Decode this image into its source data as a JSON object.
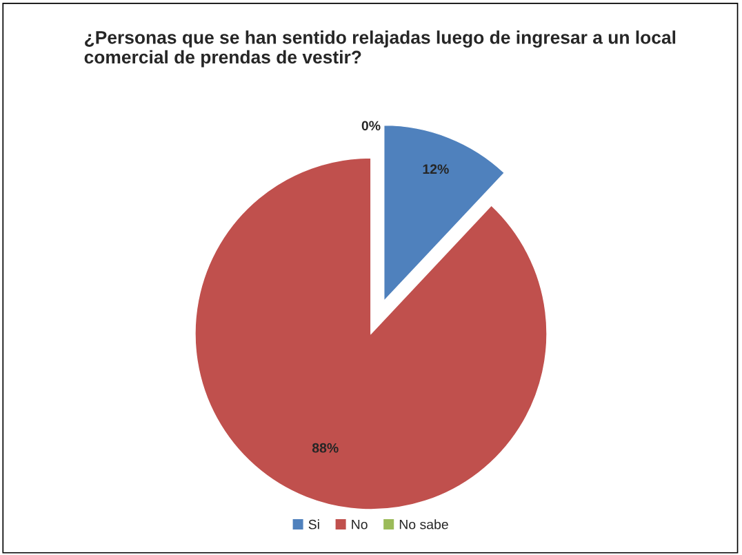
{
  "chart_data": {
    "type": "pie",
    "title": "¿Personas que se han sentido relajadas luego de ingresar a un local comercial de prendas de vestir?",
    "categories": [
      "Si",
      "No",
      "No sabe"
    ],
    "values": [
      12,
      88,
      0
    ],
    "colors": [
      "#4f81bd",
      "#c0504d",
      "#9bbb59"
    ],
    "value_labels": [
      "12%",
      "88%",
      "0%"
    ],
    "legend": "bottom"
  }
}
